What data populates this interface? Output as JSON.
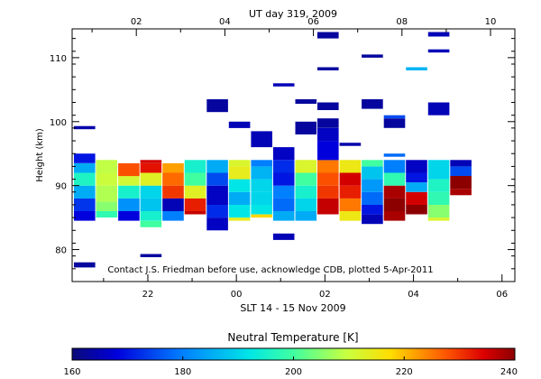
{
  "chart_data": {
    "type": "heatmap",
    "title": "UT day 319, 2009",
    "xlabel": "SLT 14 - 15 Nov 2009",
    "ylabel": "Height (km)",
    "note": "Contact J.S. Friedman before use, acknowledge CDB, plotted 5-Apr-2011",
    "x_bottom_ticks": [
      "22",
      "00",
      "02",
      "04",
      "06"
    ],
    "x_top_ticks": [
      "02",
      "04",
      "06",
      "08",
      "10"
    ],
    "y_ticks": [
      "80",
      "90",
      "100",
      "110"
    ],
    "xlim_ut_hours": [
      0.55,
      10.55
    ],
    "ylim_km": [
      75,
      114.5
    ],
    "slt_offset_hours": -4.26,
    "colorbar": {
      "label": "Neutral Temperature [K]",
      "ticks": [
        "160",
        "180",
        "200",
        "220",
        "240"
      ],
      "range": [
        160,
        240
      ]
    },
    "columns": [
      {
        "ut": 0.83,
        "cells": [
          [
            84.5,
            86,
            168
          ],
          [
            86,
            88,
            173
          ],
          [
            88,
            90,
            185
          ],
          [
            90,
            92,
            196
          ],
          [
            92,
            93.5,
            185
          ],
          [
            93.5,
            95,
            170
          ],
          [
            98.8,
            99.3,
            164
          ],
          [
            77.2,
            78,
            163
          ]
        ]
      },
      {
        "ut": 1.33,
        "cells": [
          [
            85,
            86,
            198
          ],
          [
            86,
            87.5,
            205
          ],
          [
            87.5,
            90,
            208
          ],
          [
            90,
            92,
            210
          ],
          [
            92,
            94,
            209
          ]
        ]
      },
      {
        "ut": 1.83,
        "cells": [
          [
            84.5,
            86,
            168
          ],
          [
            86,
            88,
            182
          ],
          [
            88,
            90,
            195
          ],
          [
            90,
            91.5,
            211
          ],
          [
            91.5,
            93.5,
            228
          ]
        ]
      },
      {
        "ut": 2.33,
        "cells": [
          [
            83.5,
            84.5,
            200
          ],
          [
            84.5,
            86,
            195
          ],
          [
            86,
            88,
            188
          ],
          [
            88,
            90,
            190
          ],
          [
            90,
            92,
            213
          ],
          [
            92,
            93.5,
            233
          ],
          [
            93.5,
            94,
            235
          ],
          [
            78.8,
            79.3,
            163
          ]
        ]
      },
      {
        "ut": 2.83,
        "cells": [
          [
            84.5,
            86,
            180
          ],
          [
            86,
            88,
            165
          ],
          [
            88,
            90,
            230
          ],
          [
            90,
            92,
            226
          ],
          [
            92,
            93.5,
            222
          ]
        ]
      },
      {
        "ut": 3.33,
        "cells": [
          [
            85.5,
            86,
            236
          ],
          [
            86,
            88,
            232
          ],
          [
            88,
            90,
            213
          ],
          [
            90,
            92,
            200
          ],
          [
            92,
            94,
            195
          ]
        ]
      },
      {
        "ut": 3.83,
        "cells": [
          [
            83,
            85,
            166
          ],
          [
            85,
            87,
            172
          ],
          [
            87,
            90,
            166
          ],
          [
            90,
            92,
            175
          ],
          [
            92,
            94,
            185
          ],
          [
            101.5,
            103.5,
            163
          ]
        ]
      },
      {
        "ut": 4.33,
        "cells": [
          [
            84.5,
            85,
            214
          ],
          [
            85,
            87,
            192
          ],
          [
            87,
            89,
            185
          ],
          [
            89,
            91,
            192
          ],
          [
            91,
            93,
            214
          ],
          [
            93,
            94,
            212
          ],
          [
            99,
            100,
            165
          ]
        ]
      },
      {
        "ut": 4.83,
        "cells": [
          [
            85,
            85.5,
            218
          ],
          [
            85.5,
            87,
            192
          ],
          [
            87,
            89,
            190
          ],
          [
            89,
            91,
            190
          ],
          [
            91,
            93,
            186
          ],
          [
            93,
            94,
            180
          ],
          [
            96,
            98.5,
            165
          ]
        ]
      },
      {
        "ut": 5.33,
        "cells": [
          [
            81.5,
            82.5,
            165
          ],
          [
            84.5,
            86,
            185
          ],
          [
            86,
            88,
            178
          ],
          [
            88,
            90,
            180
          ],
          [
            90,
            92,
            170
          ],
          [
            92,
            94,
            172
          ],
          [
            94,
            96,
            166
          ],
          [
            105.5,
            106,
            165
          ]
        ]
      },
      {
        "ut": 5.83,
        "cells": [
          [
            84.5,
            86,
            185
          ],
          [
            86,
            88,
            190
          ],
          [
            88,
            90,
            195
          ],
          [
            90,
            92,
            200
          ],
          [
            92,
            94,
            212
          ],
          [
            98,
            100,
            163
          ],
          [
            102.8,
            103.5,
            163
          ]
        ]
      },
      {
        "ut": 6.33,
        "cells": [
          [
            85.5,
            88,
            236
          ],
          [
            88,
            90,
            230
          ],
          [
            90,
            92,
            228
          ],
          [
            92,
            94,
            225
          ],
          [
            94,
            97,
            168
          ],
          [
            97,
            99,
            166
          ],
          [
            99,
            100.5,
            163
          ],
          [
            101.8,
            103,
            163
          ],
          [
            108,
            108.5,
            163
          ],
          [
            113,
            114,
            163
          ]
        ]
      },
      {
        "ut": 6.83,
        "cells": [
          [
            84.5,
            86,
            215
          ],
          [
            86,
            88,
            225
          ],
          [
            88,
            90,
            232
          ],
          [
            90,
            92,
            235
          ],
          [
            92,
            94,
            215
          ],
          [
            96.2,
            96.7,
            164
          ]
        ]
      },
      {
        "ut": 7.33,
        "cells": [
          [
            84,
            85.5,
            165
          ],
          [
            85.5,
            87,
            170
          ],
          [
            87,
            89,
            178
          ],
          [
            89,
            91,
            183
          ],
          [
            91,
            93,
            188
          ],
          [
            93,
            94,
            200
          ],
          [
            102,
            103.5,
            163
          ],
          [
            110,
            110.5,
            163
          ]
        ]
      },
      {
        "ut": 7.83,
        "cells": [
          [
            84.5,
            86,
            238
          ],
          [
            86,
            88,
            242
          ],
          [
            88,
            90,
            238
          ],
          [
            90,
            92,
            198
          ],
          [
            92,
            94,
            180
          ],
          [
            94.5,
            95,
            178
          ],
          [
            99,
            100.5,
            163
          ],
          [
            100.5,
            101,
            175
          ]
        ]
      },
      {
        "ut": 8.33,
        "cells": [
          [
            85.5,
            87,
            240
          ],
          [
            87,
            89,
            235
          ],
          [
            89,
            90.5,
            185
          ],
          [
            90.5,
            92,
            170
          ],
          [
            92,
            94,
            166
          ],
          [
            108,
            108.5,
            186
          ]
        ]
      },
      {
        "ut": 8.83,
        "cells": [
          [
            84.5,
            85,
            212
          ],
          [
            85,
            87,
            205
          ],
          [
            87,
            89,
            198
          ],
          [
            89,
            91,
            196
          ],
          [
            91,
            94,
            190
          ],
          [
            101,
            103,
            165
          ],
          [
            110.8,
            111.3,
            165
          ],
          [
            113.3,
            114,
            165
          ]
        ]
      },
      {
        "ut": 9.33,
        "cells": [
          [
            88.5,
            89.5,
            238
          ],
          [
            89.5,
            91.5,
            242
          ],
          [
            91.5,
            93,
            175
          ],
          [
            93,
            94,
            165
          ]
        ]
      }
    ]
  }
}
